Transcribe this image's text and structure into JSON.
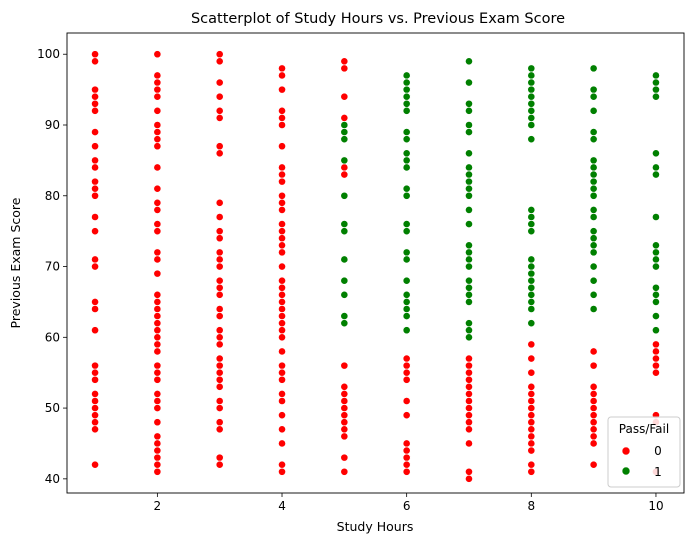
{
  "chart_data": {
    "type": "scatter",
    "title": "Scatterplot of Study Hours vs. Previous Exam Score",
    "xlabel": "Study Hours",
    "ylabel": "Previous Exam Score",
    "xlim": [
      0.55,
      10.45
    ],
    "ylim": [
      38,
      103
    ],
    "xticks": [
      2,
      4,
      6,
      8,
      10
    ],
    "yticks": [
      40,
      50,
      60,
      70,
      80,
      90,
      100
    ],
    "grid": false,
    "legend": {
      "title": "Pass/Fail",
      "placement": "lower-right"
    },
    "series": [
      {
        "name": "0",
        "color": "#ff0000",
        "points": [
          [
            1,
            100
          ],
          [
            1,
            99
          ],
          [
            1,
            95
          ],
          [
            1,
            94
          ],
          [
            1,
            93
          ],
          [
            1,
            92
          ],
          [
            1,
            89
          ],
          [
            1,
            87
          ],
          [
            1,
            85
          ],
          [
            1,
            84
          ],
          [
            1,
            82
          ],
          [
            1,
            81
          ],
          [
            1,
            80
          ],
          [
            1,
            77
          ],
          [
            1,
            75
          ],
          [
            1,
            71
          ],
          [
            1,
            70
          ],
          [
            1,
            65
          ],
          [
            1,
            64
          ],
          [
            1,
            61
          ],
          [
            1,
            56
          ],
          [
            1,
            55
          ],
          [
            1,
            54
          ],
          [
            1,
            52
          ],
          [
            1,
            51
          ],
          [
            1,
            50
          ],
          [
            1,
            49
          ],
          [
            1,
            48
          ],
          [
            1,
            47
          ],
          [
            1,
            42
          ],
          [
            2,
            100
          ],
          [
            2,
            97
          ],
          [
            2,
            96
          ],
          [
            2,
            95
          ],
          [
            2,
            94
          ],
          [
            2,
            92
          ],
          [
            2,
            90
          ],
          [
            2,
            89
          ],
          [
            2,
            88
          ],
          [
            2,
            87
          ],
          [
            2,
            84
          ],
          [
            2,
            81
          ],
          [
            2,
            79
          ],
          [
            2,
            78
          ],
          [
            2,
            76
          ],
          [
            2,
            75
          ],
          [
            2,
            72
          ],
          [
            2,
            71
          ],
          [
            2,
            69
          ],
          [
            2,
            66
          ],
          [
            2,
            65
          ],
          [
            2,
            64
          ],
          [
            2,
            63
          ],
          [
            2,
            62
          ],
          [
            2,
            61
          ],
          [
            2,
            60
          ],
          [
            2,
            59
          ],
          [
            2,
            58
          ],
          [
            2,
            56
          ],
          [
            2,
            55
          ],
          [
            2,
            54
          ],
          [
            2,
            52
          ],
          [
            2,
            51
          ],
          [
            2,
            50
          ],
          [
            2,
            48
          ],
          [
            2,
            46
          ],
          [
            2,
            45
          ],
          [
            2,
            44
          ],
          [
            2,
            43
          ],
          [
            2,
            42
          ],
          [
            2,
            41
          ],
          [
            3,
            100
          ],
          [
            3,
            99
          ],
          [
            3,
            96
          ],
          [
            3,
            94
          ],
          [
            3,
            92
          ],
          [
            3,
            91
          ],
          [
            3,
            87
          ],
          [
            3,
            86
          ],
          [
            3,
            79
          ],
          [
            3,
            77
          ],
          [
            3,
            75
          ],
          [
            3,
            74
          ],
          [
            3,
            72
          ],
          [
            3,
            71
          ],
          [
            3,
            70
          ],
          [
            3,
            68
          ],
          [
            3,
            67
          ],
          [
            3,
            66
          ],
          [
            3,
            64
          ],
          [
            3,
            63
          ],
          [
            3,
            61
          ],
          [
            3,
            60
          ],
          [
            3,
            59
          ],
          [
            3,
            57
          ],
          [
            3,
            56
          ],
          [
            3,
            55
          ],
          [
            3,
            54
          ],
          [
            3,
            53
          ],
          [
            3,
            51
          ],
          [
            3,
            50
          ],
          [
            3,
            48
          ],
          [
            3,
            47
          ],
          [
            3,
            43
          ],
          [
            3,
            42
          ],
          [
            4,
            98
          ],
          [
            4,
            97
          ],
          [
            4,
            95
          ],
          [
            4,
            92
          ],
          [
            4,
            91
          ],
          [
            4,
            90
          ],
          [
            4,
            87
          ],
          [
            4,
            84
          ],
          [
            4,
            83
          ],
          [
            4,
            82
          ],
          [
            4,
            80
          ],
          [
            4,
            79
          ],
          [
            4,
            78
          ],
          [
            4,
            76
          ],
          [
            4,
            75
          ],
          [
            4,
            74
          ],
          [
            4,
            73
          ],
          [
            4,
            72
          ],
          [
            4,
            70
          ],
          [
            4,
            68
          ],
          [
            4,
            67
          ],
          [
            4,
            66
          ],
          [
            4,
            65
          ],
          [
            4,
            64
          ],
          [
            4,
            63
          ],
          [
            4,
            62
          ],
          [
            4,
            61
          ],
          [
            4,
            60
          ],
          [
            4,
            58
          ],
          [
            4,
            56
          ],
          [
            4,
            55
          ],
          [
            4,
            54
          ],
          [
            4,
            52
          ],
          [
            4,
            51
          ],
          [
            4,
            49
          ],
          [
            4,
            47
          ],
          [
            4,
            45
          ],
          [
            4,
            42
          ],
          [
            4,
            41
          ],
          [
            5,
            99
          ],
          [
            5,
            98
          ],
          [
            5,
            94
          ],
          [
            5,
            91
          ],
          [
            5,
            89
          ],
          [
            5,
            84
          ],
          [
            5,
            83
          ],
          [
            5,
            56
          ],
          [
            5,
            53
          ],
          [
            5,
            52
          ],
          [
            5,
            51
          ],
          [
            5,
            50
          ],
          [
            5,
            49
          ],
          [
            5,
            48
          ],
          [
            5,
            47
          ],
          [
            5,
            46
          ],
          [
            5,
            43
          ],
          [
            5,
            41
          ],
          [
            6,
            57
          ],
          [
            6,
            56
          ],
          [
            6,
            55
          ],
          [
            6,
            54
          ],
          [
            6,
            51
          ],
          [
            6,
            49
          ],
          [
            6,
            45
          ],
          [
            6,
            44
          ],
          [
            6,
            43
          ],
          [
            6,
            42
          ],
          [
            6,
            41
          ],
          [
            7,
            57
          ],
          [
            7,
            56
          ],
          [
            7,
            55
          ],
          [
            7,
            54
          ],
          [
            7,
            53
          ],
          [
            7,
            52
          ],
          [
            7,
            51
          ],
          [
            7,
            50
          ],
          [
            7,
            49
          ],
          [
            7,
            48
          ],
          [
            7,
            47
          ],
          [
            7,
            45
          ],
          [
            7,
            41
          ],
          [
            7,
            40
          ],
          [
            8,
            59
          ],
          [
            8,
            57
          ],
          [
            8,
            55
          ],
          [
            8,
            53
          ],
          [
            8,
            52
          ],
          [
            8,
            51
          ],
          [
            8,
            50
          ],
          [
            8,
            49
          ],
          [
            8,
            48
          ],
          [
            8,
            47
          ],
          [
            8,
            46
          ],
          [
            8,
            45
          ],
          [
            8,
            44
          ],
          [
            8,
            42
          ],
          [
            8,
            41
          ],
          [
            9,
            58
          ],
          [
            9,
            56
          ],
          [
            9,
            53
          ],
          [
            9,
            52
          ],
          [
            9,
            51
          ],
          [
            9,
            50
          ],
          [
            9,
            49
          ],
          [
            9,
            48
          ],
          [
            9,
            47
          ],
          [
            9,
            46
          ],
          [
            9,
            45
          ],
          [
            9,
            42
          ],
          [
            10,
            59
          ],
          [
            10,
            58
          ],
          [
            10,
            57
          ],
          [
            10,
            56
          ],
          [
            10,
            55
          ],
          [
            10,
            49
          ],
          [
            10,
            48
          ],
          [
            10,
            41
          ]
        ]
      },
      {
        "name": "1",
        "color": "#008000",
        "points": [
          [
            5,
            90
          ],
          [
            5,
            89
          ],
          [
            5,
            88
          ],
          [
            5,
            85
          ],
          [
            5,
            80
          ],
          [
            5,
            76
          ],
          [
            5,
            75
          ],
          [
            5,
            71
          ],
          [
            5,
            68
          ],
          [
            5,
            66
          ],
          [
            5,
            63
          ],
          [
            5,
            62
          ],
          [
            6,
            97
          ],
          [
            6,
            96
          ],
          [
            6,
            95
          ],
          [
            6,
            94
          ],
          [
            6,
            93
          ],
          [
            6,
            92
          ],
          [
            6,
            89
          ],
          [
            6,
            88
          ],
          [
            6,
            86
          ],
          [
            6,
            85
          ],
          [
            6,
            84
          ],
          [
            6,
            81
          ],
          [
            6,
            80
          ],
          [
            6,
            76
          ],
          [
            6,
            75
          ],
          [
            6,
            72
          ],
          [
            6,
            71
          ],
          [
            6,
            68
          ],
          [
            6,
            66
          ],
          [
            6,
            65
          ],
          [
            6,
            64
          ],
          [
            6,
            63
          ],
          [
            6,
            61
          ],
          [
            7,
            99
          ],
          [
            7,
            96
          ],
          [
            7,
            93
          ],
          [
            7,
            92
          ],
          [
            7,
            90
          ],
          [
            7,
            89
          ],
          [
            7,
            86
          ],
          [
            7,
            84
          ],
          [
            7,
            83
          ],
          [
            7,
            82
          ],
          [
            7,
            81
          ],
          [
            7,
            80
          ],
          [
            7,
            78
          ],
          [
            7,
            76
          ],
          [
            7,
            73
          ],
          [
            7,
            72
          ],
          [
            7,
            71
          ],
          [
            7,
            70
          ],
          [
            7,
            68
          ],
          [
            7,
            67
          ],
          [
            7,
            66
          ],
          [
            7,
            65
          ],
          [
            7,
            62
          ],
          [
            7,
            61
          ],
          [
            7,
            60
          ],
          [
            8,
            98
          ],
          [
            8,
            97
          ],
          [
            8,
            96
          ],
          [
            8,
            95
          ],
          [
            8,
            94
          ],
          [
            8,
            93
          ],
          [
            8,
            92
          ],
          [
            8,
            91
          ],
          [
            8,
            90
          ],
          [
            8,
            88
          ],
          [
            8,
            78
          ],
          [
            8,
            77
          ],
          [
            8,
            76
          ],
          [
            8,
            75
          ],
          [
            8,
            71
          ],
          [
            8,
            70
          ],
          [
            8,
            69
          ],
          [
            8,
            68
          ],
          [
            8,
            67
          ],
          [
            8,
            66
          ],
          [
            8,
            65
          ],
          [
            8,
            64
          ],
          [
            8,
            62
          ],
          [
            9,
            98
          ],
          [
            9,
            95
          ],
          [
            9,
            94
          ],
          [
            9,
            92
          ],
          [
            9,
            89
          ],
          [
            9,
            88
          ],
          [
            9,
            85
          ],
          [
            9,
            84
          ],
          [
            9,
            83
          ],
          [
            9,
            82
          ],
          [
            9,
            81
          ],
          [
            9,
            80
          ],
          [
            9,
            78
          ],
          [
            9,
            77
          ],
          [
            9,
            75
          ],
          [
            9,
            74
          ],
          [
            9,
            73
          ],
          [
            9,
            72
          ],
          [
            9,
            70
          ],
          [
            9,
            68
          ],
          [
            9,
            66
          ],
          [
            9,
            64
          ],
          [
            10,
            97
          ],
          [
            10,
            96
          ],
          [
            10,
            95
          ],
          [
            10,
            94
          ],
          [
            10,
            86
          ],
          [
            10,
            84
          ],
          [
            10,
            83
          ],
          [
            10,
            77
          ],
          [
            10,
            73
          ],
          [
            10,
            72
          ],
          [
            10,
            71
          ],
          [
            10,
            70
          ],
          [
            10,
            67
          ],
          [
            10,
            66
          ],
          [
            10,
            65
          ],
          [
            10,
            63
          ],
          [
            10,
            61
          ]
        ]
      }
    ]
  }
}
